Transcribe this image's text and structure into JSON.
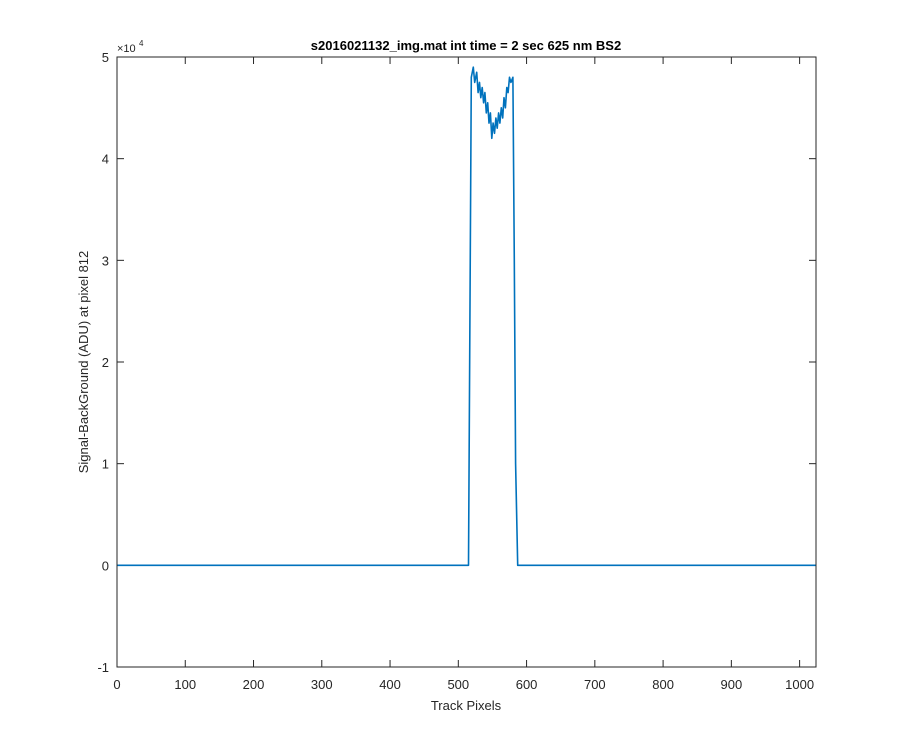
{
  "chart_data": {
    "type": "line",
    "title": "s2016021132_img.mat int time = 2 sec  625 nm BS2",
    "xlabel": "Track Pixels",
    "ylabel": "Signal-BackGround (ADU) at pixel 812",
    "xlim": [
      0,
      1024
    ],
    "ylim": [
      -10000,
      50000
    ],
    "y_exponent_label": "×10",
    "y_exponent_power": "4",
    "x_ticks": [
      0,
      100,
      200,
      300,
      400,
      500,
      600,
      700,
      800,
      900,
      1000
    ],
    "x_tick_labels": [
      "0",
      "100",
      "200",
      "300",
      "400",
      "500",
      "600",
      "700",
      "800",
      "900",
      "1000"
    ],
    "y_ticks": [
      -10000,
      0,
      10000,
      20000,
      30000,
      40000,
      50000
    ],
    "y_tick_labels": [
      "-1",
      "0",
      "1",
      "2",
      "3",
      "4",
      "5"
    ],
    "grid": false,
    "line_color": "#0072BD",
    "series": [
      {
        "x": [
          0,
          100,
          200,
          300,
          400,
          500,
          515,
          519,
          522,
          524,
          527,
          529,
          531,
          533,
          535,
          537,
          539,
          541,
          543,
          545,
          547,
          549,
          551,
          553,
          555,
          557,
          559,
          561,
          563,
          565,
          567,
          569,
          571,
          573,
          575,
          577,
          580,
          582,
          584,
          587,
          600,
          700,
          800,
          900,
          1024
        ],
        "y": [
          0,
          0,
          0,
          0,
          0,
          0,
          0,
          48000,
          49000,
          47500,
          48500,
          46500,
          47500,
          46000,
          47000,
          45500,
          46500,
          44500,
          45500,
          43500,
          44500,
          42000,
          43500,
          42500,
          44000,
          43000,
          44500,
          43500,
          45000,
          44000,
          46000,
          45000,
          47000,
          46500,
          48000,
          47500,
          48000,
          30000,
          10000,
          0,
          0,
          0,
          0,
          0,
          0
        ]
      }
    ]
  }
}
